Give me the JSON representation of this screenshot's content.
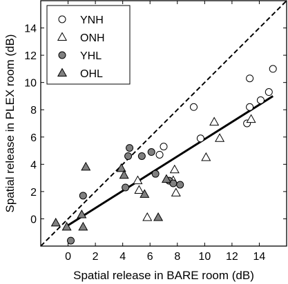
{
  "chart_data": {
    "type": "scatter",
    "xlabel": "Spatial release in BARE room (dB)",
    "ylabel": "Spatial release in PLEX room (dB)",
    "xlim": [
      -2,
      16
    ],
    "ylim": [
      -2,
      16
    ],
    "xticks": [
      0,
      2,
      4,
      6,
      8,
      10,
      12,
      14
    ],
    "yticks": [
      0,
      2,
      4,
      6,
      8,
      10,
      12,
      14
    ],
    "legend_position": "top-left",
    "grid": false,
    "series": [
      {
        "name": "YNH",
        "marker": "circle-open",
        "points": [
          [
            13.3,
            10.3
          ],
          [
            15.0,
            11.0
          ],
          [
            14.7,
            9.3
          ],
          [
            14.1,
            8.7
          ],
          [
            13.3,
            8.2
          ],
          [
            13.1,
            7.0
          ],
          [
            9.2,
            8.2
          ],
          [
            9.7,
            5.9
          ],
          [
            7.0,
            5.3
          ],
          [
            6.7,
            4.7
          ]
        ]
      },
      {
        "name": "ONH",
        "marker": "triangle-open",
        "points": [
          [
            13.4,
            7.3
          ],
          [
            10.7,
            7.1
          ],
          [
            11.1,
            5.9
          ],
          [
            10.1,
            4.5
          ],
          [
            7.8,
            3.6
          ],
          [
            7.7,
            2.8
          ],
          [
            7.9,
            1.9
          ],
          [
            5.1,
            2.8
          ],
          [
            5.2,
            2.1
          ],
          [
            5.8,
            0.1
          ]
        ]
      },
      {
        "name": "YHL",
        "marker": "circle-filled",
        "points": [
          [
            4.5,
            5.2
          ],
          [
            4.4,
            4.6
          ],
          [
            6.1,
            4.9
          ],
          [
            6.4,
            3.3
          ],
          [
            5.4,
            4.6
          ],
          [
            4.2,
            2.3
          ],
          [
            7.4,
            2.8
          ],
          [
            7.7,
            2.6
          ],
          [
            8.2,
            2.5
          ],
          [
            1.1,
            1.7
          ],
          [
            0.2,
            -1.6
          ]
        ]
      },
      {
        "name": "OHL",
        "marker": "triangle-filled",
        "points": [
          [
            1.3,
            3.8
          ],
          [
            3.9,
            3.7
          ],
          [
            4.1,
            3.2
          ],
          [
            7.2,
            2.9
          ],
          [
            5.6,
            1.8
          ],
          [
            6.6,
            0.1
          ],
          [
            1.0,
            0.3
          ],
          [
            -0.9,
            -0.3
          ],
          [
            -0.1,
            -0.6
          ],
          [
            1.1,
            -0.6
          ]
        ]
      }
    ],
    "reference_line": {
      "style": "dashed",
      "from": [
        -2,
        -2
      ],
      "to": [
        16,
        16
      ]
    },
    "regression_line": {
      "style": "solid",
      "from": [
        -0.2,
        -0.6
      ],
      "to": [
        15.0,
        9.0
      ]
    }
  }
}
